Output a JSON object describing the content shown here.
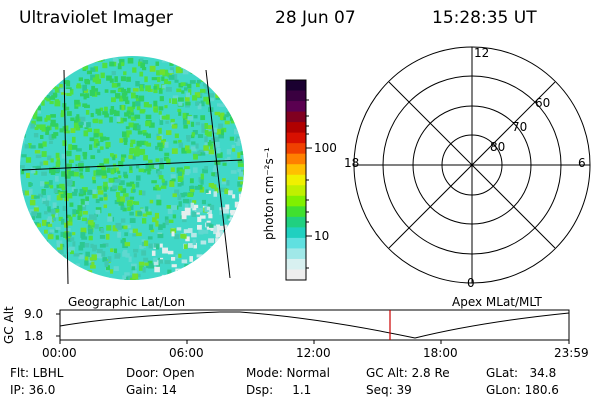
{
  "header": {
    "title": "Ultraviolet Imager",
    "date": "28 Jun 07",
    "time": "15:28:35 UT"
  },
  "colorbar": {
    "unit_label": "photon cm⁻²s⁻¹",
    "tick_labels": [
      "100",
      "10"
    ],
    "colors": [
      "#1a0030",
      "#3a0040",
      "#5a0050",
      "#800020",
      "#b00000",
      "#d81000",
      "#f04000",
      "#ff8000",
      "#ffc000",
      "#f0f000",
      "#c0f000",
      "#80f000",
      "#40e030",
      "#20d080",
      "#20d0c0",
      "#60e0e0",
      "#a0e8e8",
      "#d8f0f0",
      "#eeeeee"
    ]
  },
  "image_panel": {
    "label": "Geographic Lat/Lon"
  },
  "polar_panel": {
    "label": "Apex MLat/MLT",
    "mlt_labels": {
      "top": "12",
      "left": "18",
      "right": "6",
      "bottom": "0"
    },
    "lat_labels": [
      "60",
      "70",
      "80"
    ]
  },
  "timeline": {
    "y_axis_label": "GC Alt",
    "y_ticks": [
      "9.0",
      "1.8"
    ],
    "x_ticks": [
      "00:00",
      "06:00",
      "12:00",
      "18:00",
      "23:59"
    ],
    "marker_color": "#cc0000"
  },
  "footer": {
    "flt": "Flt: LBHL",
    "ip": "IP: 36.0",
    "door": "Door: Open",
    "gain": "Gain: 14",
    "mode": "Mode: Normal",
    "dsp": "Dsp:     1.1",
    "gc_alt": "GC Alt: 2.8 Re",
    "seq": "Seq: 39",
    "glat": "GLat:   34.8",
    "glon": "GLon: 180.6"
  }
}
